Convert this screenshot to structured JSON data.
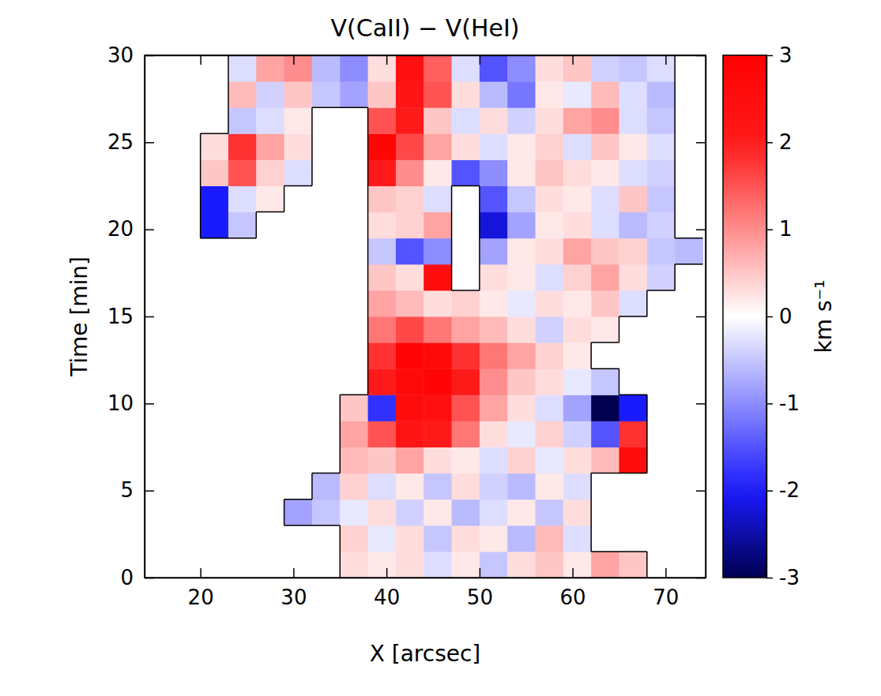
{
  "chart_data": {
    "type": "heatmap",
    "title": "V(CaII) − V(HeI)",
    "x_label": "X [arcsec]",
    "y_label": "Time [min]",
    "xlim": [
      14,
      74.3
    ],
    "xticks": [
      20,
      30,
      40,
      50,
      60,
      70
    ],
    "ylim": [
      0,
      30
    ],
    "yticks": [
      0,
      5,
      10,
      15,
      20,
      25,
      30
    ],
    "x": [
      15.5,
      18.5,
      21.5,
      24.5,
      27.5,
      30.5,
      33.5,
      36.5,
      39.5,
      42.5,
      45.5,
      48.5,
      51.5,
      54.5,
      57.5,
      60.5,
      63.5,
      66.5,
      69.5,
      72.5
    ],
    "y": [
      0.75,
      2.25,
      3.75,
      5.25,
      6.75,
      8.25,
      9.75,
      11.25,
      12.75,
      14.25,
      15.75,
      17.25,
      18.75,
      20.25,
      21.75,
      23.25,
      24.75,
      26.25,
      27.75,
      29.25
    ],
    "values": [
      [
        null,
        null,
        null,
        null,
        null,
        null,
        null,
        0.3,
        0.2,
        0.3,
        -0.3,
        0.2,
        -0.5,
        0.3,
        0.5,
        0.2,
        0.8,
        0.5,
        null,
        null
      ],
      [
        null,
        null,
        null,
        null,
        null,
        null,
        null,
        0.4,
        -0.2,
        0.3,
        -0.5,
        0.3,
        0.2,
        -0.6,
        0.6,
        -0.3,
        null,
        null,
        null,
        null
      ],
      [
        null,
        null,
        null,
        null,
        null,
        -0.8,
        -0.5,
        -0.2,
        0.3,
        -0.4,
        0.2,
        -0.6,
        -0.3,
        0.2,
        -0.5,
        0.3,
        null,
        null,
        null,
        null
      ],
      [
        null,
        null,
        null,
        null,
        null,
        null,
        -0.6,
        0.4,
        -0.3,
        0.2,
        -0.5,
        0.3,
        -0.4,
        -0.6,
        0.2,
        -0.3,
        null,
        null,
        null,
        null
      ],
      [
        null,
        null,
        null,
        null,
        null,
        null,
        null,
        0.6,
        0.5,
        0.8,
        0.3,
        0.2,
        -0.3,
        0.4,
        -0.2,
        0.3,
        0.6,
        2.5,
        null,
        null
      ],
      [
        null,
        null,
        null,
        null,
        null,
        null,
        null,
        0.8,
        1.5,
        2.2,
        2.0,
        1.2,
        0.3,
        -0.2,
        0.4,
        -0.4,
        -1.5,
        1.8,
        null,
        null
      ],
      [
        null,
        null,
        null,
        null,
        null,
        null,
        null,
        0.5,
        -1.8,
        2.5,
        2.4,
        1.5,
        0.8,
        0.3,
        -0.3,
        -0.8,
        -3.0,
        -2.0,
        null,
        null
      ],
      [
        null,
        null,
        null,
        null,
        null,
        null,
        null,
        null,
        2.0,
        2.6,
        2.8,
        2.0,
        1.0,
        0.5,
        0.3,
        -0.2,
        -0.5,
        null,
        null,
        null
      ],
      [
        null,
        null,
        null,
        null,
        null,
        null,
        null,
        null,
        1.8,
        2.8,
        2.6,
        1.8,
        1.2,
        0.8,
        0.4,
        0.2,
        null,
        null,
        null,
        null
      ],
      [
        null,
        null,
        null,
        null,
        null,
        null,
        null,
        null,
        1.2,
        1.6,
        1.2,
        0.8,
        0.6,
        0.3,
        -0.4,
        0.3,
        0.2,
        null,
        null,
        null
      ],
      [
        null,
        null,
        null,
        null,
        null,
        null,
        null,
        null,
        0.8,
        0.6,
        0.3,
        0.4,
        0.2,
        -0.2,
        0.3,
        0.2,
        0.5,
        -0.3,
        null,
        null
      ],
      [
        null,
        null,
        null,
        null,
        null,
        null,
        null,
        null,
        0.5,
        0.3,
        2.5,
        null,
        0.3,
        0.2,
        -0.3,
        0.4,
        0.8,
        0.3,
        -0.4,
        null
      ],
      [
        null,
        null,
        null,
        null,
        null,
        null,
        null,
        null,
        -0.5,
        -1.5,
        -1.0,
        null,
        -0.8,
        0.2,
        0.3,
        0.8,
        0.5,
        0.4,
        -0.5,
        -0.6
      ],
      [
        null,
        null,
        -2.0,
        -0.5,
        null,
        null,
        null,
        null,
        0.3,
        0.4,
        0.8,
        null,
        -2.2,
        -0.8,
        0.2,
        0.3,
        -0.3,
        -0.6,
        -0.4,
        null
      ],
      [
        null,
        null,
        -2.0,
        -0.3,
        0.2,
        null,
        null,
        null,
        0.5,
        0.4,
        -0.3,
        null,
        -1.5,
        -0.5,
        0.3,
        0.2,
        -0.3,
        0.5,
        -0.5,
        null
      ],
      [
        null,
        null,
        0.5,
        1.5,
        0.4,
        -0.3,
        null,
        null,
        2.0,
        1.0,
        0.2,
        -1.5,
        -1.0,
        0.2,
        0.5,
        0.3,
        0.2,
        -0.3,
        -0.4,
        null
      ],
      [
        null,
        null,
        0.3,
        1.8,
        0.8,
        0.3,
        null,
        null,
        2.8,
        1.6,
        0.8,
        0.3,
        -0.3,
        0.2,
        0.4,
        -0.3,
        0.5,
        0.2,
        -0.3,
        null
      ],
      [
        null,
        null,
        null,
        -0.5,
        -0.3,
        0.2,
        null,
        null,
        1.5,
        2.0,
        0.5,
        -0.3,
        0.3,
        -0.4,
        0.3,
        0.8,
        1.0,
        -0.3,
        -0.5,
        null
      ],
      [
        null,
        null,
        null,
        0.6,
        -0.4,
        0.5,
        -0.5,
        -0.8,
        0.5,
        2.2,
        1.5,
        0.3,
        -0.6,
        -1.2,
        0.2,
        -0.2,
        0.6,
        -0.3,
        -0.6,
        null
      ],
      [
        null,
        null,
        null,
        -0.3,
        0.8,
        1.0,
        -0.6,
        -1.0,
        0.3,
        2.4,
        1.4,
        -0.3,
        -1.5,
        -1.0,
        0.3,
        0.5,
        -0.4,
        -0.5,
        -0.3,
        null
      ]
    ],
    "color_label": "km s⁻¹",
    "color_range": [
      -3,
      3
    ],
    "color_ticks": [
      -3,
      -2,
      -1,
      0,
      1,
      2,
      3
    ]
  }
}
